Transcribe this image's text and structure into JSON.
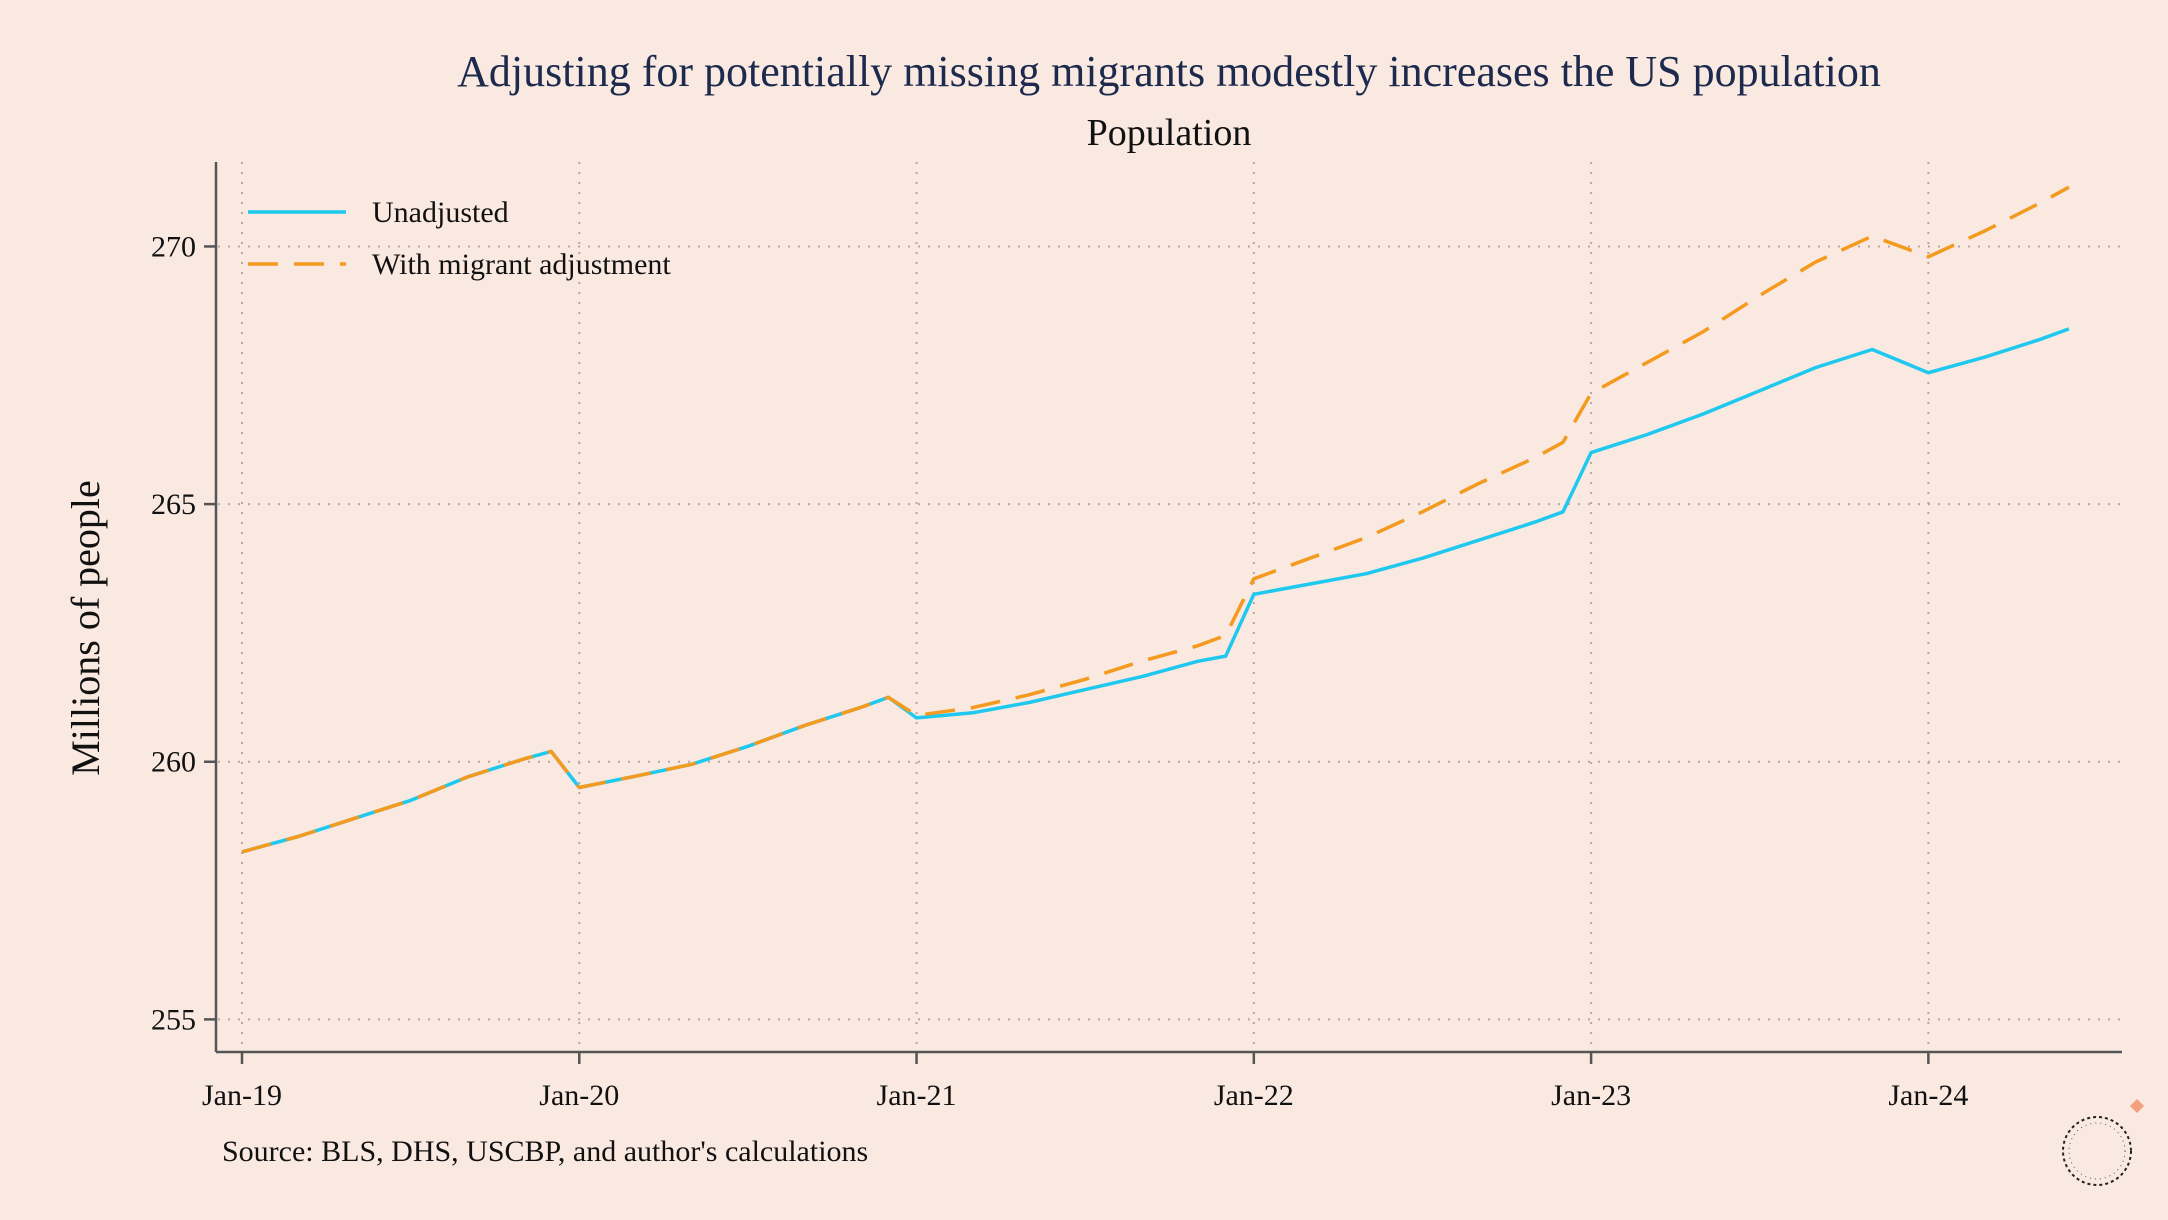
{
  "chart_data": {
    "type": "line",
    "title": "Adjusting for potentially missing migrants modestly increases the US population",
    "subtitle": "Population",
    "xlabel": "",
    "ylabel": "Millions of people",
    "source": "Source: BLS, DHS, USCBP, and author's calculations",
    "legend_position": "top-left",
    "grid": true,
    "xlim": [
      0,
      66
    ],
    "ylim": [
      254.6,
      271.6
    ],
    "x_ticks": [
      {
        "x": 0,
        "label": "Jan-19"
      },
      {
        "x": 12,
        "label": "Jan-20"
      },
      {
        "x": 24,
        "label": "Jan-21"
      },
      {
        "x": 36,
        "label": "Jan-22"
      },
      {
        "x": 48,
        "label": "Jan-23"
      },
      {
        "x": 60,
        "label": "Jan-24"
      }
    ],
    "y_ticks": [
      255,
      260,
      265,
      270
    ],
    "series": [
      {
        "name": "Unadjusted",
        "color": "#1ec8ee",
        "style": "solid",
        "points": [
          [
            0,
            258.25
          ],
          [
            2,
            258.55
          ],
          [
            4,
            258.9
          ],
          [
            6,
            259.25
          ],
          [
            8,
            259.7
          ],
          [
            10,
            260.05
          ],
          [
            11,
            260.2
          ],
          [
            12,
            259.5
          ],
          [
            14,
            259.72
          ],
          [
            16,
            259.95
          ],
          [
            18,
            260.3
          ],
          [
            20,
            260.7
          ],
          [
            22,
            261.05
          ],
          [
            23,
            261.25
          ],
          [
            24,
            260.85
          ],
          [
            26,
            260.95
          ],
          [
            28,
            261.15
          ],
          [
            30,
            261.4
          ],
          [
            32,
            261.65
          ],
          [
            34,
            261.95
          ],
          [
            35,
            262.05
          ],
          [
            36,
            263.25
          ],
          [
            38,
            263.45
          ],
          [
            40,
            263.65
          ],
          [
            42,
            263.95
          ],
          [
            44,
            264.3
          ],
          [
            46,
            264.65
          ],
          [
            47,
            264.85
          ],
          [
            48,
            266.0
          ],
          [
            50,
            266.35
          ],
          [
            52,
            266.75
          ],
          [
            54,
            267.2
          ],
          [
            56,
            267.65
          ],
          [
            58,
            268.0
          ],
          [
            60,
            267.55
          ],
          [
            62,
            267.85
          ],
          [
            64,
            268.2
          ],
          [
            65,
            268.4
          ]
        ]
      },
      {
        "name": "With migrant adjustment",
        "color": "#f39a1f",
        "style": "dashed",
        "points": [
          [
            0,
            258.25
          ],
          [
            2,
            258.55
          ],
          [
            4,
            258.9
          ],
          [
            6,
            259.25
          ],
          [
            8,
            259.7
          ],
          [
            10,
            260.05
          ],
          [
            11,
            260.2
          ],
          [
            12,
            259.5
          ],
          [
            14,
            259.72
          ],
          [
            16,
            259.95
          ],
          [
            18,
            260.3
          ],
          [
            20,
            260.7
          ],
          [
            22,
            261.05
          ],
          [
            23,
            261.25
          ],
          [
            24,
            260.9
          ],
          [
            26,
            261.05
          ],
          [
            28,
            261.3
          ],
          [
            30,
            261.6
          ],
          [
            32,
            261.95
          ],
          [
            34,
            262.25
          ],
          [
            35,
            262.45
          ],
          [
            36,
            263.55
          ],
          [
            38,
            263.95
          ],
          [
            40,
            264.35
          ],
          [
            42,
            264.85
          ],
          [
            44,
            265.4
          ],
          [
            46,
            265.9
          ],
          [
            47,
            266.2
          ],
          [
            48,
            267.15
          ],
          [
            50,
            267.75
          ],
          [
            52,
            268.35
          ],
          [
            54,
            269.05
          ],
          [
            56,
            269.7
          ],
          [
            58,
            270.2
          ],
          [
            60,
            269.8
          ],
          [
            62,
            270.3
          ],
          [
            64,
            270.85
          ],
          [
            65,
            271.15
          ]
        ]
      }
    ]
  }
}
